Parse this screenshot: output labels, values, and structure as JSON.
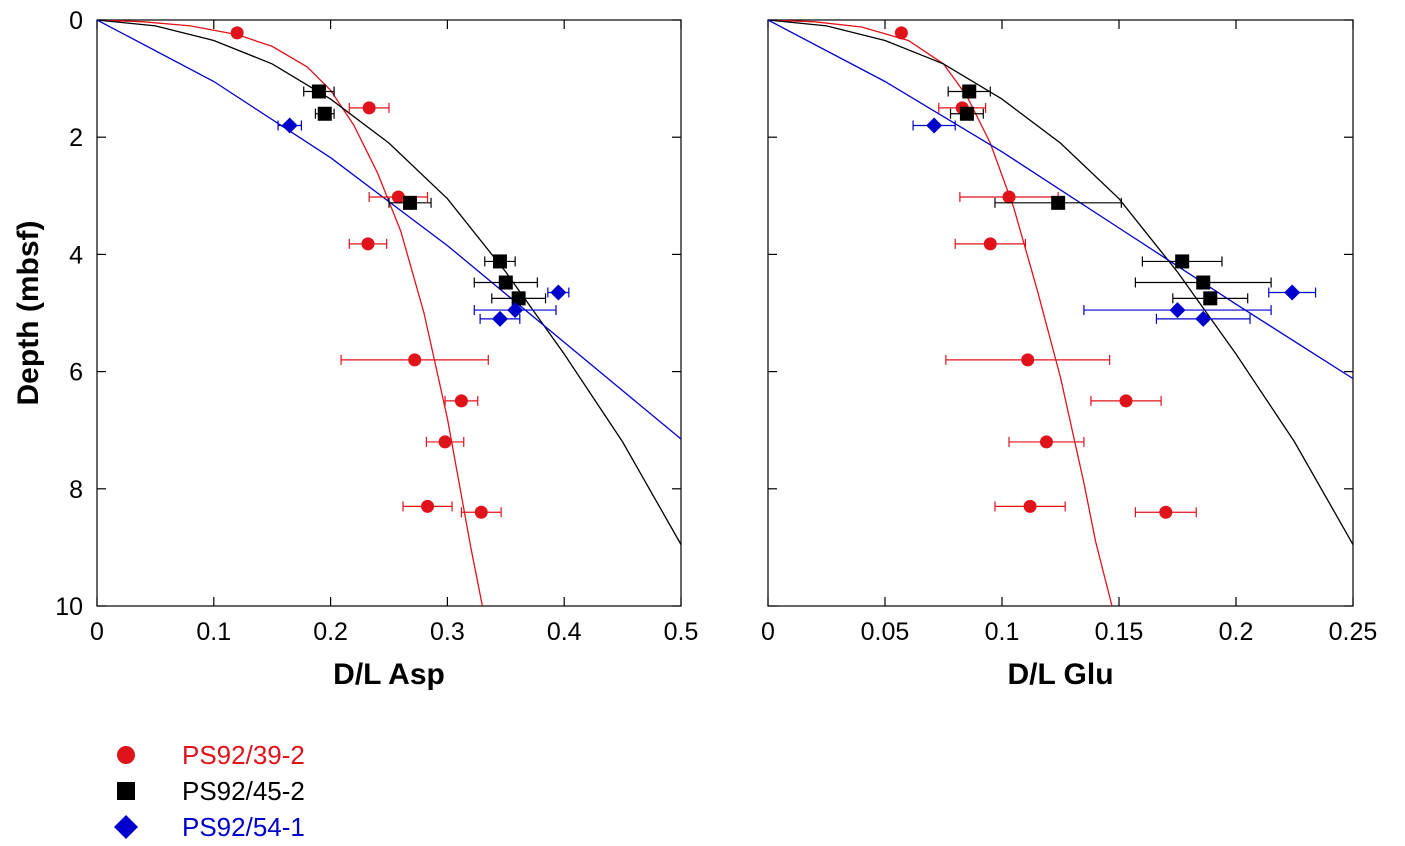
{
  "chart_data": [
    {
      "type": "scatter",
      "id": "asp",
      "xlabel": "D/L Asp",
      "ylabel": "Depth (mbsf)",
      "xlim": [
        0,
        0.5
      ],
      "ylim": [
        0,
        10
      ],
      "y_inverted": true,
      "xticks": [
        0,
        0.1,
        0.2,
        0.3,
        0.4,
        0.5
      ],
      "xtick_labels": [
        "0",
        "0.1",
        "0.2",
        "0.3",
        "0.4",
        "0.5"
      ],
      "yticks": [
        0,
        2,
        4,
        6,
        8,
        10
      ],
      "ytick_labels": [
        "0",
        "2",
        "4",
        "6",
        "8",
        "10"
      ],
      "series": [
        {
          "name": "PS92/39-2",
          "color": "#e0121a",
          "marker": "circle",
          "points": [
            {
              "x": 0.12,
              "y": 0.22,
              "xerr": 0
            },
            {
              "x": 0.233,
              "y": 1.5,
              "xerr": 0.017
            },
            {
              "x": 0.258,
              "y": 3.02,
              "xerr": 0.025
            },
            {
              "x": 0.232,
              "y": 3.82,
              "xerr": 0.016
            },
            {
              "x": 0.272,
              "y": 5.8,
              "xerr": 0.063
            },
            {
              "x": 0.312,
              "y": 6.5,
              "xerr": 0.014
            },
            {
              "x": 0.298,
              "y": 7.2,
              "xerr": 0.016
            },
            {
              "x": 0.283,
              "y": 8.3,
              "xerr": 0.021
            },
            {
              "x": 0.329,
              "y": 8.4,
              "xerr": 0.017
            }
          ],
          "fit": [
            [
              0,
              0
            ],
            [
              0.04,
              0.03
            ],
            [
              0.08,
              0.1
            ],
            [
              0.12,
              0.25
            ],
            [
              0.15,
              0.45
            ],
            [
              0.18,
              0.8
            ],
            [
              0.2,
              1.2
            ],
            [
              0.22,
              1.8
            ],
            [
              0.24,
              2.6
            ],
            [
              0.26,
              3.6
            ],
            [
              0.28,
              5.0
            ],
            [
              0.3,
              6.8
            ],
            [
              0.31,
              7.9
            ],
            [
              0.32,
              9.0
            ],
            [
              0.33,
              10.0
            ]
          ]
        },
        {
          "name": "PS92/45-2",
          "color": "#000000",
          "marker": "square",
          "points": [
            {
              "x": 0.19,
              "y": 1.22,
              "xerr": 0.013
            },
            {
              "x": 0.195,
              "y": 1.6,
              "xerr": 0.008
            },
            {
              "x": 0.268,
              "y": 3.12,
              "xerr": 0.018
            },
            {
              "x": 0.345,
              "y": 4.12,
              "xerr": 0.013
            },
            {
              "x": 0.35,
              "y": 4.48,
              "xerr": 0.027
            },
            {
              "x": 0.361,
              "y": 4.75,
              "xerr": 0.023
            }
          ],
          "fit": [
            [
              0,
              0
            ],
            [
              0.05,
              0.1
            ],
            [
              0.1,
              0.35
            ],
            [
              0.15,
              0.75
            ],
            [
              0.2,
              1.35
            ],
            [
              0.25,
              2.1
            ],
            [
              0.3,
              3.05
            ],
            [
              0.35,
              4.3
            ],
            [
              0.4,
              5.7
            ],
            [
              0.45,
              7.2
            ],
            [
              0.5,
              8.95
            ]
          ]
        },
        {
          "name": "PS92/54-1",
          "color": "#0000cc",
          "marker": "diamond",
          "points": [
            {
              "x": 0.165,
              "y": 1.8,
              "xerr": 0.01
            },
            {
              "x": 0.395,
              "y": 4.65,
              "xerr": 0.009
            },
            {
              "x": 0.358,
              "y": 4.95,
              "xerr": 0.035
            },
            {
              "x": 0.345,
              "y": 5.1,
              "xerr": 0.017
            }
          ],
          "fit": [
            [
              0,
              0
            ],
            [
              0.1,
              1.05
            ],
            [
              0.2,
              2.35
            ],
            [
              0.3,
              3.85
            ],
            [
              0.4,
              5.5
            ],
            [
              0.5,
              7.15
            ]
          ]
        }
      ]
    },
    {
      "type": "scatter",
      "id": "glu",
      "xlabel": "D/L Glu",
      "ylabel": "",
      "xlim": [
        0,
        0.25
      ],
      "ylim": [
        0,
        10
      ],
      "y_inverted": true,
      "xticks": [
        0,
        0.05,
        0.1,
        0.15,
        0.2,
        0.25
      ],
      "xtick_labels": [
        "0",
        "0.05",
        "0.1",
        "0.15",
        "0.2",
        "0.25"
      ],
      "yticks": [
        0,
        2,
        4,
        6,
        8,
        10
      ],
      "ytick_labels": [
        "",
        "",
        "",
        "",
        "",
        ""
      ],
      "series": [
        {
          "name": "PS92/39-2",
          "color": "#e0121a",
          "marker": "circle",
          "points": [
            {
              "x": 0.057,
              "y": 0.22,
              "xerr": 0
            },
            {
              "x": 0.083,
              "y": 1.5,
              "xerr": 0.01
            },
            {
              "x": 0.103,
              "y": 3.02,
              "xerr": 0.021
            },
            {
              "x": 0.095,
              "y": 3.82,
              "xerr": 0.015
            },
            {
              "x": 0.111,
              "y": 5.8,
              "xerr": 0.035
            },
            {
              "x": 0.153,
              "y": 6.5,
              "xerr": 0.015
            },
            {
              "x": 0.119,
              "y": 7.2,
              "xerr": 0.016
            },
            {
              "x": 0.112,
              "y": 8.3,
              "xerr": 0.015
            },
            {
              "x": 0.17,
              "y": 8.4,
              "xerr": 0.013
            }
          ],
          "fit": [
            [
              0,
              0
            ],
            [
              0.02,
              0.03
            ],
            [
              0.04,
              0.12
            ],
            [
              0.06,
              0.35
            ],
            [
              0.075,
              0.75
            ],
            [
              0.085,
              1.3
            ],
            [
              0.095,
              2.1
            ],
            [
              0.105,
              3.2
            ],
            [
              0.115,
              4.6
            ],
            [
              0.125,
              6.1
            ],
            [
              0.135,
              7.9
            ],
            [
              0.14,
              8.9
            ],
            [
              0.147,
              10.0
            ]
          ]
        },
        {
          "name": "PS92/45-2",
          "color": "#000000",
          "marker": "square",
          "points": [
            {
              "x": 0.086,
              "y": 1.22,
              "xerr": 0.009
            },
            {
              "x": 0.085,
              "y": 1.6,
              "xerr": 0.007
            },
            {
              "x": 0.124,
              "y": 3.12,
              "xerr": 0.027
            },
            {
              "x": 0.177,
              "y": 4.12,
              "xerr": 0.017
            },
            {
              "x": 0.186,
              "y": 4.48,
              "xerr": 0.029
            },
            {
              "x": 0.189,
              "y": 4.75,
              "xerr": 0.016
            }
          ],
          "fit": [
            [
              0,
              0
            ],
            [
              0.025,
              0.1
            ],
            [
              0.05,
              0.35
            ],
            [
              0.075,
              0.75
            ],
            [
              0.1,
              1.35
            ],
            [
              0.125,
              2.1
            ],
            [
              0.15,
              3.05
            ],
            [
              0.175,
              4.3
            ],
            [
              0.2,
              5.7
            ],
            [
              0.225,
              7.2
            ],
            [
              0.25,
              8.95
            ]
          ]
        },
        {
          "name": "PS92/54-1",
          "color": "#0000cc",
          "marker": "diamond",
          "points": [
            {
              "x": 0.071,
              "y": 1.8,
              "xerr": 0.009
            },
            {
              "x": 0.224,
              "y": 4.65,
              "xerr": 0.01
            },
            {
              "x": 0.175,
              "y": 4.95,
              "xerr": 0.04
            },
            {
              "x": 0.186,
              "y": 5.1,
              "xerr": 0.02
            }
          ],
          "fit": [
            [
              0,
              0
            ],
            [
              0.05,
              1.05
            ],
            [
              0.1,
              2.25
            ],
            [
              0.15,
              3.55
            ],
            [
              0.2,
              4.85
            ],
            [
              0.25,
              6.12
            ]
          ]
        }
      ]
    }
  ],
  "legend": {
    "placement": "bottom-left",
    "items": [
      {
        "label": "PS92/39-2",
        "color": "#e0121a",
        "marker": "circle"
      },
      {
        "label": "PS92/45-2",
        "color": "#000000",
        "marker": "square"
      },
      {
        "label": "PS92/54-1",
        "color": "#0000cc",
        "marker": "diamond"
      }
    ]
  }
}
